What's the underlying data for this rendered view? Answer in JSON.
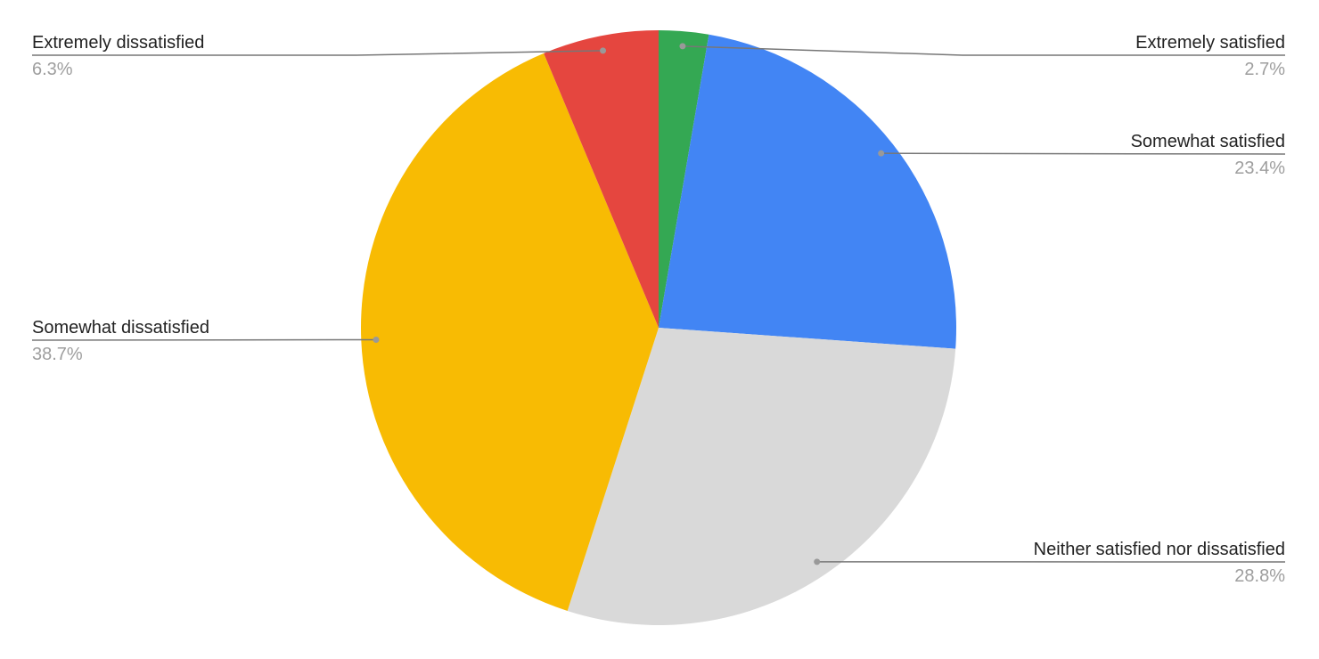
{
  "chart_data": {
    "type": "pie",
    "title": "",
    "start_angle": "top, clockwise",
    "legend": "labeled slices",
    "slices": [
      {
        "label": "Extremely satisfied",
        "value": 2.7,
        "display": "2.7%",
        "color": "#34a853"
      },
      {
        "label": "Somewhat satisfied",
        "value": 23.4,
        "display": "23.4%",
        "color": "#4285f4"
      },
      {
        "label": "Neither satisfied nor dissatisfied",
        "value": 28.8,
        "display": "28.8%",
        "color": "#d9d9d9"
      },
      {
        "label": "Somewhat dissatisfied",
        "value": 38.7,
        "display": "38.7%",
        "color": "#f8bb03"
      },
      {
        "label": "Extremely dissatisfied",
        "value": 6.3,
        "display": "6.3%",
        "color": "#e5463f"
      }
    ]
  }
}
